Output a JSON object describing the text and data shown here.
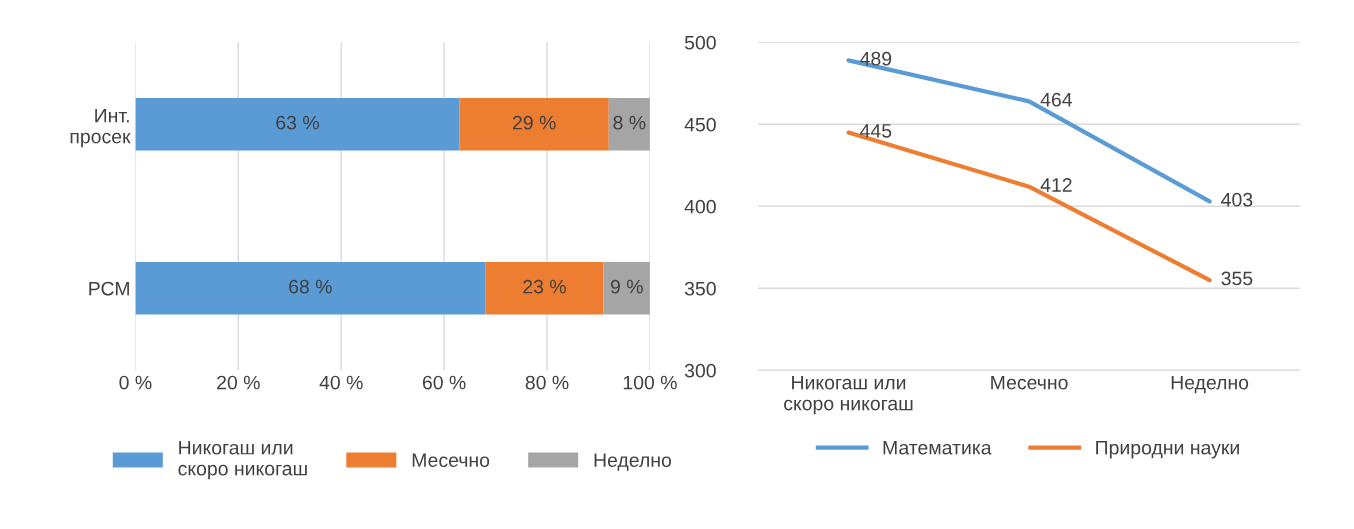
{
  "chart_data": [
    {
      "type": "bar",
      "orientation": "horizontal",
      "stacked": true,
      "categories": [
        "Инт.\nпросек",
        "РСМ"
      ],
      "series": [
        {
          "name": "Никогаш или\nскоро никогаш",
          "color": "#5b9bd5",
          "values": [
            63,
            68
          ],
          "value_labels": [
            "63 %",
            "68 %"
          ]
        },
        {
          "name": "Месечно",
          "color": "#ed7d31",
          "values": [
            29,
            23
          ],
          "value_labels": [
            "29 %",
            "23 %"
          ]
        },
        {
          "name": "Неделно",
          "color": "#a5a5a5",
          "values": [
            8,
            9
          ],
          "value_labels": [
            "8 %",
            "9 %"
          ]
        }
      ],
      "xlim": [
        0,
        100
      ],
      "xticks": [
        {
          "value": 0,
          "label": "0 %"
        },
        {
          "value": 20,
          "label": "20 %"
        },
        {
          "value": 40,
          "label": "40 %"
        },
        {
          "value": 60,
          "label": "60 %"
        },
        {
          "value": 80,
          "label": "80 %"
        },
        {
          "value": 100,
          "label": "100 %"
        }
      ],
      "grid": "x",
      "legend": "bottom"
    },
    {
      "type": "line",
      "categories": [
        "Никогаш или\nскоро никогаш",
        "Месечно",
        "Неделно"
      ],
      "series": [
        {
          "name": "Математика",
          "color": "#5b9bd5",
          "values": [
            489,
            464,
            403
          ]
        },
        {
          "name": "Природни науки",
          "color": "#ed7d31",
          "values": [
            445,
            412,
            355
          ]
        }
      ],
      "ylim": [
        300,
        500
      ],
      "yticks": [
        300,
        350,
        400,
        450,
        500
      ],
      "grid": "y",
      "data_labels": true,
      "legend": "bottom",
      "marker": "none"
    }
  ]
}
